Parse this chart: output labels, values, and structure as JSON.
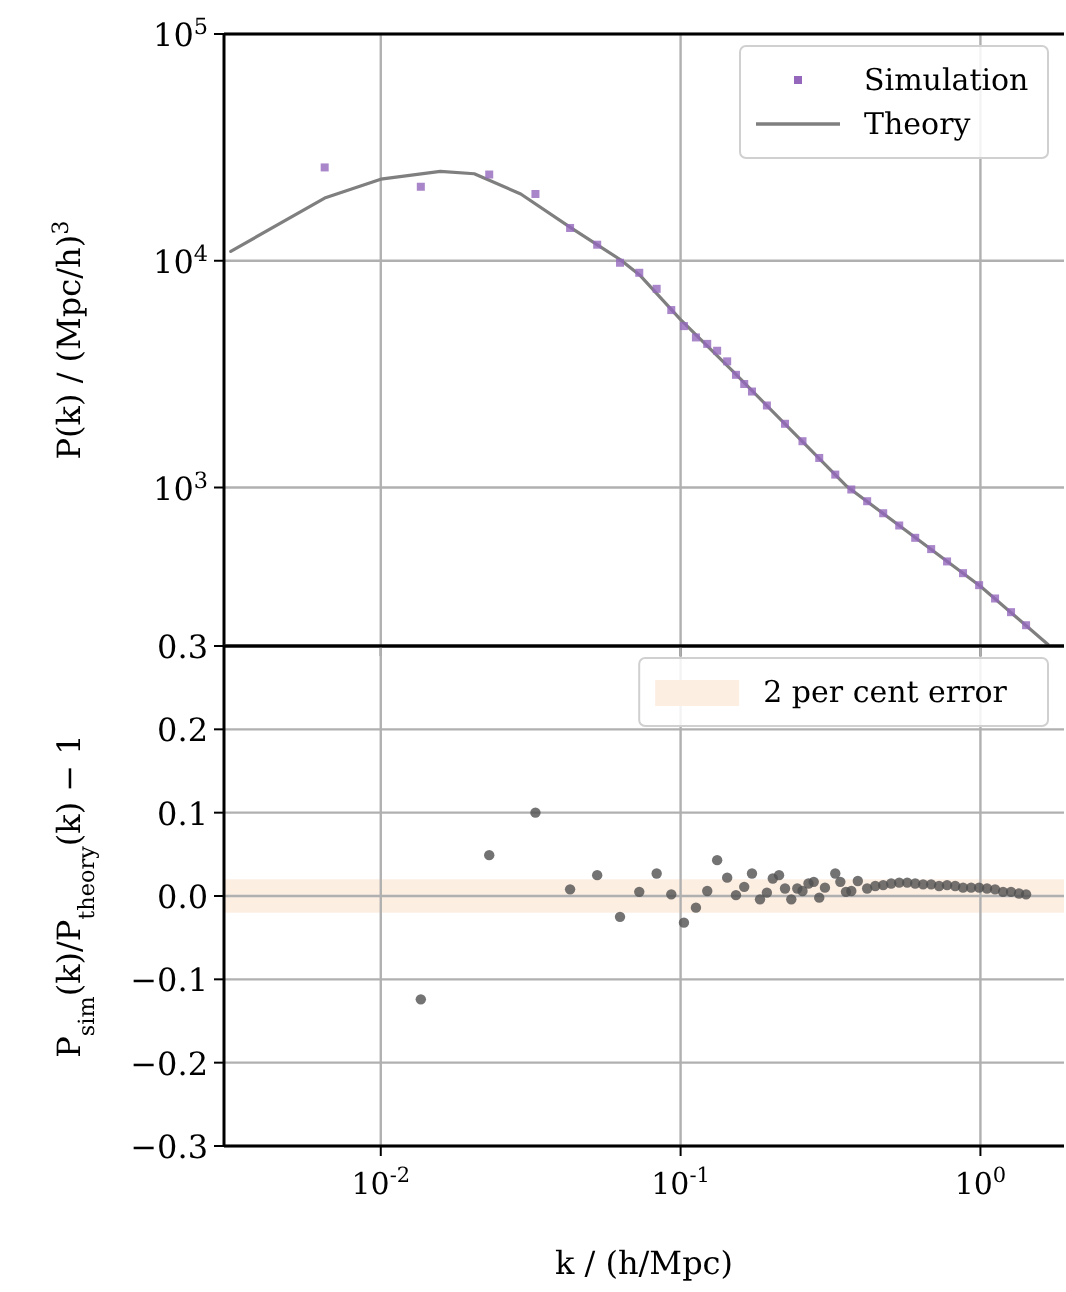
{
  "chart_data": [
    {
      "type": "line",
      "ylabel": "P(k) / (Mpc/h)$^{3}$",
      "log": "xy",
      "grid": true,
      "legend": "top right",
      "tick_labels": "y",
      "xlim": [
        0.003,
        1.9
      ],
      "ylim": [
        200,
        100000
      ],
      "xticks": [
        {
          "value": 0.01,
          "label": null
        },
        {
          "value": 0.1,
          "label": null
        },
        {
          "value": 1,
          "label": null
        }
      ],
      "yticks": [
        {
          "value": 1000,
          "label": "10$^{3}$"
        },
        {
          "value": 10000,
          "label": "10$^{4}$"
        },
        {
          "value": 100000,
          "label": "10$^{5}$"
        }
      ],
      "series": [
        {
          "name": "Simulation",
          "type": "scatter",
          "marker": "square",
          "color": "#9467bd",
          "x": [
            0.0065,
            0.0136,
            0.023,
            0.0328,
            0.0428,
            0.0527,
            0.0628,
            0.0728,
            0.0832,
            0.0931,
            0.1026,
            0.1125,
            0.1227,
            0.1324,
            0.143,
            0.153,
            0.163,
            0.173,
            0.194,
            0.223,
            0.255,
            0.29,
            0.328,
            0.371,
            0.419,
            0.474,
            0.536,
            0.606,
            0.685,
            0.774,
            0.875,
            0.99,
            1.119,
            1.265,
            1.42
          ],
          "values": [
            25800,
            21200,
            24000,
            19700,
            13950,
            11770,
            9800,
            8850,
            7520,
            6060,
            5150,
            4590,
            4300,
            4010,
            3600,
            3140,
            2860,
            2650,
            2300,
            1910,
            1600,
            1350,
            1140,
            980,
            870,
            770,
            680,
            600,
            535,
            472,
            419,
            371,
            324,
            282,
            247
          ]
        },
        {
          "name": "Theory",
          "color": "#7f7f7f",
          "x": [
            0.00316,
            0.0065,
            0.01,
            0.0158,
            0.0205,
            0.0293,
            0.043,
            0.063,
            0.0735,
            0.1,
            0.151,
            0.359,
            1.0,
            1.68
          ],
          "values": [
            11000,
            18900,
            22900,
            24800,
            24200,
            19700,
            14000,
            10100,
            8580,
            5500,
            3210,
            1010,
            367,
            203
          ]
        }
      ]
    },
    {
      "type": "scatter",
      "xlabel": "k / (h/Mpc)",
      "ylabel": "P$_{sim}$(k)/P$_{theory}$(k) − 1",
      "log": "x",
      "grid": true,
      "legend": "top right",
      "marker": "circle",
      "xlim": [
        0.003,
        1.9
      ],
      "ylim": [
        -0.3,
        0.3
      ],
      "xticks": [
        {
          "value": 0.01,
          "label": "10$^{-2}$"
        },
        {
          "value": 0.1,
          "label": "10$^{-1}$"
        },
        {
          "value": 1,
          "label": "10$^{0}$"
        }
      ],
      "yticks": [
        {
          "value": -0.3,
          "label": "−0.3"
        },
        {
          "value": -0.2,
          "label": "−0.2"
        },
        {
          "value": -0.1,
          "label": "−0.1"
        },
        {
          "value": 0,
          "label": "0.0"
        },
        {
          "value": 0.1,
          "label": "0.1"
        },
        {
          "value": 0.2,
          "label": "0.2"
        },
        {
          "value": 0.3,
          "label": "0.3"
        }
      ],
      "bands": [
        {
          "axis": "y",
          "from": -0.02,
          "to": 0.02,
          "label": "2 per cent error",
          "color": "#fdeee2"
        }
      ],
      "series": [
        {
          "color": "#505050",
          "x": [
            0.0136,
            0.023,
            0.0328,
            0.0428,
            0.0527,
            0.0628,
            0.0728,
            0.0832,
            0.0931,
            0.1026,
            0.1125,
            0.1227,
            0.1324,
            0.143,
            0.153,
            0.163,
            0.173,
            0.184,
            0.194,
            0.203,
            0.213,
            0.223,
            0.234,
            0.245,
            0.255,
            0.267,
            0.278,
            0.29,
            0.303,
            0.328,
            0.341,
            0.356,
            0.371,
            0.39,
            0.419,
            0.446,
            0.474,
            0.504,
            0.536,
            0.57,
            0.606,
            0.644,
            0.685,
            0.728,
            0.774,
            0.824,
            0.875,
            0.931,
            0.99,
            1.052,
            1.119,
            1.19,
            1.265,
            1.345,
            1.42
          ],
          "values": [
            -0.124,
            0.049,
            0.1,
            0.008,
            0.025,
            -0.025,
            0.005,
            0.027,
            0.002,
            -0.032,
            -0.014,
            0.006,
            0.043,
            0.022,
            0.001,
            0.011,
            0.027,
            -0.004,
            0.004,
            0.021,
            0.025,
            0.009,
            -0.004,
            0.009,
            0.006,
            0.015,
            0.017,
            -0.002,
            0.01,
            0.027,
            0.017,
            0.005,
            0.006,
            0.018,
            0.009,
            0.012,
            0.013,
            0.015,
            0.016,
            0.016,
            0.015,
            0.014,
            0.014,
            0.012,
            0.013,
            0.012,
            0.01,
            0.01,
            0.01,
            0.009,
            0.008,
            0.005,
            0.005,
            0.003,
            0.002
          ]
        }
      ]
    }
  ]
}
